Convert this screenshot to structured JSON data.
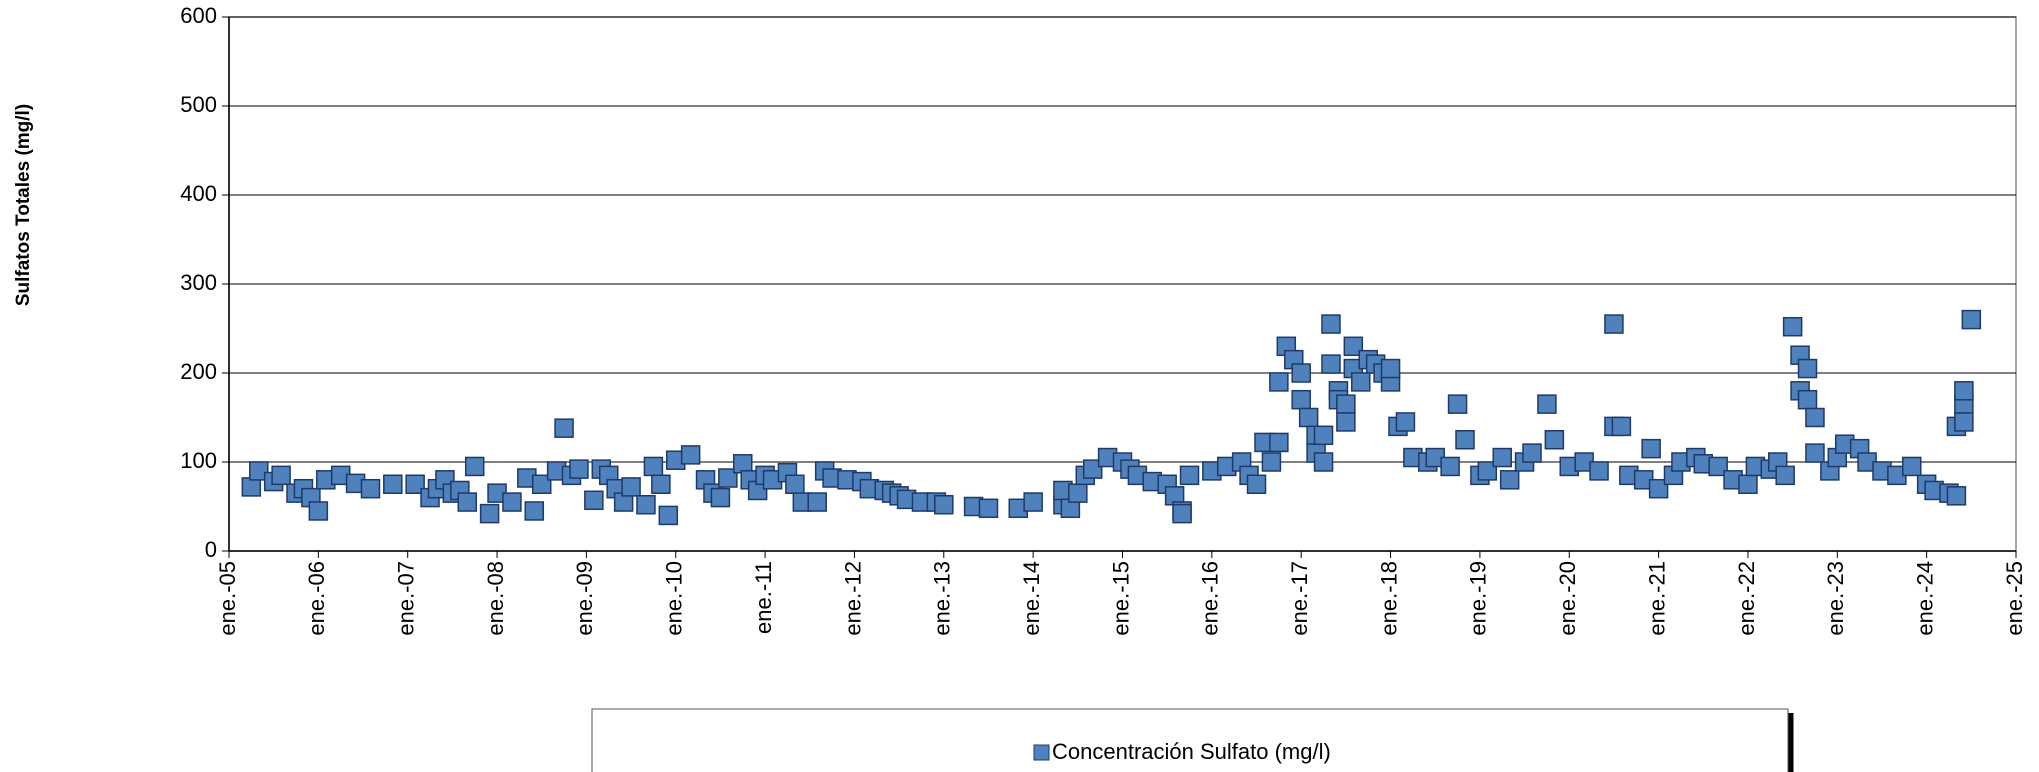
{
  "chart_data": {
    "type": "scatter",
    "y_label": "Sulfatos Totales (mg/l)",
    "x": [
      "2005-04",
      "2005-05",
      "2005-07",
      "2005-08",
      "2005-10",
      "2005-11",
      "2005-12",
      "2006-01",
      "2006-02",
      "2006-04",
      "2006-06",
      "2006-08",
      "2006-11",
      "2007-02",
      "2007-04",
      "2007-05",
      "2007-06",
      "2007-07",
      "2007-08",
      "2007-09",
      "2007-10",
      "2007-12",
      "2008-01",
      "2008-03",
      "2008-05",
      "2008-06",
      "2008-07",
      "2008-09",
      "2008-10",
      "2008-11",
      "2008-12",
      "2009-02",
      "2009-03",
      "2009-04",
      "2009-05",
      "2009-06",
      "2009-07",
      "2009-09",
      "2009-10",
      "2009-11",
      "2009-12",
      "2010-01",
      "2010-03",
      "2010-05",
      "2010-06",
      "2010-07",
      "2010-08",
      "2010-10",
      "2010-11",
      "2010-12",
      "2011-01",
      "2011-02",
      "2011-04",
      "2011-05",
      "2011-06",
      "2011-08",
      "2011-09",
      "2011-10",
      "2011-12",
      "2012-02",
      "2012-03",
      "2012-05",
      "2012-06",
      "2012-07",
      "2012-08",
      "2012-10",
      "2012-12",
      "2013-01",
      "2013-05",
      "2013-07",
      "2013-11",
      "2014-01",
      "2014-05",
      "2014-05",
      "2014-06",
      "2014-07",
      "2014-08",
      "2014-09",
      "2014-11",
      "2015-01",
      "2015-02",
      "2015-03",
      "2015-05",
      "2015-07",
      "2015-08",
      "2015-09",
      "2015-09",
      "2015-10",
      "2016-01",
      "2016-03",
      "2016-05",
      "2016-06",
      "2016-07",
      "2016-08",
      "2016-09",
      "2016-10",
      "2016-10",
      "2016-11",
      "2016-12",
      "2017-01",
      "2017-01",
      "2017-02",
      "2017-03",
      "2017-03",
      "2017-04",
      "2017-04",
      "2017-05",
      "2017-05",
      "2017-06",
      "2017-06",
      "2017-07",
      "2017-07",
      "2017-08",
      "2017-08",
      "2017-09",
      "2017-10",
      "2017-11",
      "2017-12",
      "2018-01",
      "2018-01",
      "2018-02",
      "2018-03",
      "2018-04",
      "2018-06",
      "2018-07",
      "2018-09",
      "2018-10",
      "2018-11",
      "2019-01",
      "2019-02",
      "2019-04",
      "2019-05",
      "2019-07",
      "2019-08",
      "2019-10",
      "2019-11",
      "2020-01",
      "2020-03",
      "2020-05",
      "2020-07",
      "2020-07",
      "2020-08",
      "2020-09",
      "2020-11",
      "2020-12",
      "2021-01",
      "2021-03",
      "2021-04",
      "2021-06",
      "2021-07",
      "2021-09",
      "2021-11",
      "2022-01",
      "2022-02",
      "2022-04",
      "2022-05",
      "2022-06",
      "2022-07",
      "2022-08",
      "2022-08",
      "2022-09",
      "2022-09",
      "2022-10",
      "2022-10",
      "2022-12",
      "2023-01",
      "2023-02",
      "2023-04",
      "2023-05",
      "2023-07",
      "2023-09",
      "2023-11",
      "2024-01",
      "2024-02",
      "2024-04",
      "2024-05",
      "2024-05",
      "2024-06",
      "2024-06",
      "2024-06",
      "2024-07"
    ],
    "series": [
      {
        "name": "Concentración Sulfato (mg/l)",
        "color": "#4f81bd",
        "values": [
          72,
          90,
          78,
          85,
          65,
          70,
          60,
          45,
          80,
          85,
          76,
          70,
          75,
          75,
          60,
          70,
          80,
          65,
          68,
          55,
          95,
          42,
          65,
          55,
          82,
          45,
          75,
          90,
          138,
          85,
          92,
          57,
          92,
          85,
          70,
          55,
          72,
          52,
          95,
          75,
          40,
          102,
          108,
          80,
          65,
          60,
          82,
          98,
          80,
          68,
          85,
          80,
          88,
          75,
          55,
          55,
          90,
          82,
          80,
          78,
          70,
          68,
          65,
          62,
          58,
          55,
          55,
          52,
          50,
          48,
          48,
          55,
          52,
          68,
          48,
          65,
          85,
          92,
          105,
          100,
          92,
          85,
          78,
          75,
          62,
          45,
          42,
          85,
          90,
          95,
          100,
          85,
          75,
          122,
          100,
          122,
          190,
          230,
          215,
          200,
          170,
          150,
          130,
          110,
          100,
          130,
          255,
          210,
          180,
          170,
          165,
          145,
          230,
          205,
          190,
          215,
          210,
          200,
          190,
          205,
          140,
          145,
          105,
          100,
          105,
          95,
          165,
          125,
          85,
          90,
          105,
          80,
          100,
          110,
          165,
          125,
          95,
          100,
          90,
          255,
          140,
          140,
          85,
          80,
          115,
          70,
          85,
          100,
          105,
          98,
          95,
          80,
          75,
          95,
          92,
          100,
          85,
          252,
          220,
          180,
          205,
          170,
          150,
          110,
          90,
          105,
          120,
          115,
          100,
          90,
          85,
          95,
          75,
          68,
          65,
          62,
          140,
          165,
          180,
          145,
          260
        ]
      }
    ],
    "xlim": [
      "2005-01",
      "2025-01"
    ],
    "xticks": [
      {
        "value": "2005-01",
        "label": "ene.-05"
      },
      {
        "value": "2006-01",
        "label": "ene.-06"
      },
      {
        "value": "2007-01",
        "label": "ene.-07"
      },
      {
        "value": "2008-01",
        "label": "ene.-08"
      },
      {
        "value": "2009-01",
        "label": "ene.-09"
      },
      {
        "value": "2010-01",
        "label": "ene.-10"
      },
      {
        "value": "2011-01",
        "label": "ene.-11"
      },
      {
        "value": "2012-01",
        "label": "ene.-12"
      },
      {
        "value": "2013-01",
        "label": "ene.-13"
      },
      {
        "value": "2014-01",
        "label": "ene.-14"
      },
      {
        "value": "2015-01",
        "label": "ene.-15"
      },
      {
        "value": "2016-01",
        "label": "ene.-16"
      },
      {
        "value": "2017-01",
        "label": "ene.-17"
      },
      {
        "value": "2018-01",
        "label": "ene.-18"
      },
      {
        "value": "2019-01",
        "label": "ene.-19"
      },
      {
        "value": "2020-01",
        "label": "ene.-20"
      },
      {
        "value": "2021-01",
        "label": "ene.-21"
      },
      {
        "value": "2022-01",
        "label": "ene.-22"
      },
      {
        "value": "2023-01",
        "label": "ene.-23"
      },
      {
        "value": "2024-01",
        "label": "ene.-24"
      },
      {
        "value": "2025-01",
        "label": "ene.-25"
      }
    ],
    "ylim": [
      0,
      600
    ],
    "yticks": [
      0,
      100,
      200,
      300,
      400,
      500,
      600
    ],
    "grid": true
  }
}
